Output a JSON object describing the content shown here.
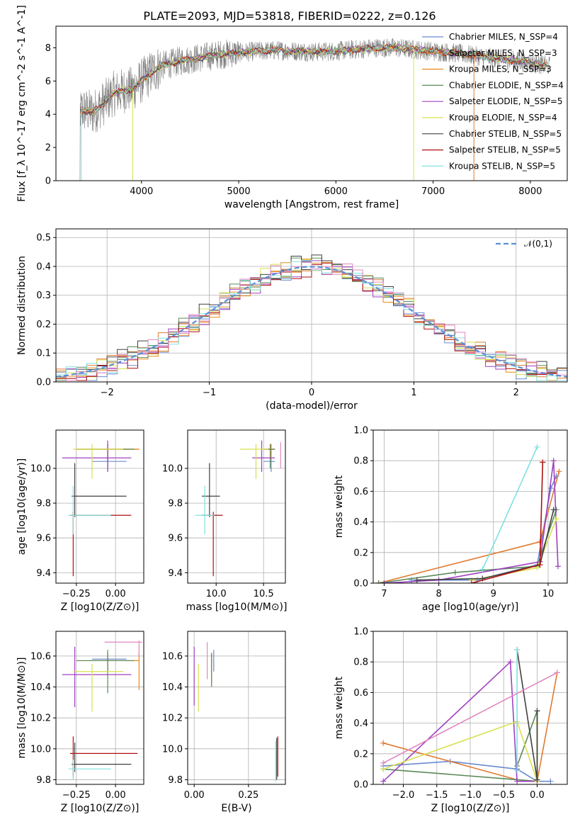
{
  "colors": [
    "#6a8bd1",
    "#e07a2f",
    "#e8891c",
    "#5a8a5a",
    "#a040c0",
    "#d8e050",
    "#404040",
    "#b01010",
    "#80e0e0",
    "#e088c0"
  ],
  "chart_data": [
    {
      "id": "spectrum",
      "type": "line",
      "title": "PLATE=2093, MJD=53818, FIBERID=0222, z=0.126",
      "xlabel": "wavelength [Angstrom, rest frame]",
      "ylabel": "Flux [f_λ 10^-17 erg cm^-2 s^-1 A^-1]",
      "xlim": [
        3120,
        8380
      ],
      "ylim": [
        0,
        9.3
      ],
      "xticks": [
        4000,
        5000,
        6000,
        7000,
        8000
      ],
      "yticks": [
        0,
        2,
        4,
        6,
        8
      ],
      "grid": false,
      "legend_position": "right",
      "series": [
        {
          "name": "Chabrier MILES, N_SSP=4",
          "color_index": 0
        },
        {
          "name": "Salpeter MILES, N_SSP=3",
          "color_index": 1
        },
        {
          "name": "Kroupa MILES, N_SSP=3",
          "color_index": 2
        },
        {
          "name": "Chabrier ELODIE, N_SSP=4",
          "color_index": 3
        },
        {
          "name": "Salpeter ELODIE, N_SSP=5",
          "color_index": 4
        },
        {
          "name": "Kroupa ELODIE, N_SSP=4",
          "color_index": 5
        },
        {
          "name": "Chabrier STELIB, N_SSP=5",
          "color_index": 6
        },
        {
          "name": "Salpeter STELIB, N_SSP=5",
          "color_index": 7
        },
        {
          "name": "Kroupa STELIB, N_SSP=5",
          "color_index": 8
        }
      ],
      "data_color": "#808080",
      "continuum": {
        "x": [
          3350,
          3400,
          3500,
          3600,
          3700,
          3800,
          3900,
          4000,
          4100,
          4200,
          4400,
          4600,
          4800,
          5000,
          5200,
          5400,
          5600,
          5800,
          6000,
          6200,
          6400,
          6600,
          6800,
          7000,
          7200,
          7400,
          7600,
          7800,
          8000,
          8200
        ],
        "y": [
          4.2,
          4.25,
          4.1,
          4.6,
          5.2,
          5.4,
          5.5,
          6.0,
          6.5,
          6.9,
          7.2,
          7.4,
          7.6,
          7.7,
          7.8,
          7.85,
          7.8,
          7.75,
          7.8,
          7.9,
          8.0,
          8.0,
          7.9,
          7.8,
          7.7,
          7.55,
          7.4,
          7.25,
          7.1,
          6.9
        ]
      }
    },
    {
      "id": "residuals",
      "type": "line",
      "xlabel": "(data-model)/error",
      "ylabel": "Normed distribution",
      "xlim": [
        -2.5,
        2.5
      ],
      "ylim": [
        0,
        0.53
      ],
      "xticks": [
        -2,
        -1,
        0,
        1,
        2
      ],
      "yticks": [
        0.0,
        0.1,
        0.2,
        0.3,
        0.4,
        0.5
      ],
      "grid": true,
      "legend_position": "top-right",
      "reference": {
        "name": "𝒩(0,1)",
        "color": "#5b8fd6",
        "mu": 0,
        "sigma": 1
      }
    },
    {
      "id": "age_vs_Z",
      "type": "scatter",
      "xlabel": "Z [log10(Z/Z⊙)]",
      "ylabel": "age [log10(age/yr)]",
      "xlim": [
        -0.38,
        0.18
      ],
      "ylim": [
        9.34,
        10.22
      ],
      "xticks": [
        -0.25,
        0.0
      ],
      "yticks": [
        9.4,
        9.6,
        9.8,
        10.0
      ],
      "grid": true,
      "points": [
        {
          "x": -0.05,
          "y": 10.04,
          "xe": [
            -0.15,
            0.07
          ],
          "ye": [
            9.98,
            10.1
          ],
          "c": 0
        },
        {
          "x": -0.05,
          "y": 10.11,
          "xe": [
            -0.25,
            0.15
          ],
          "ye": [
            10.05,
            10.14
          ],
          "c": 1
        },
        {
          "x": -0.05,
          "y": 10.11,
          "xe": [
            -0.25,
            0.15
          ],
          "ye": [
            10.05,
            10.14
          ],
          "c": 2
        },
        {
          "x": -0.05,
          "y": 10.11,
          "xe": [
            -0.25,
            0.12
          ],
          "ye": [
            10.0,
            10.14
          ],
          "c": 3
        },
        {
          "x": -0.05,
          "y": 10.06,
          "xe": [
            -0.34,
            0.1
          ],
          "ye": [
            9.98,
            10.16
          ],
          "c": 4
        },
        {
          "x": -0.15,
          "y": 10.11,
          "xe": [
            -0.27,
            0.05
          ],
          "ye": [
            9.94,
            10.14
          ],
          "c": 5
        },
        {
          "x": -0.26,
          "y": 9.84,
          "xe": [
            -0.28,
            0.07
          ],
          "ye": [
            9.72,
            10.03
          ],
          "c": 6
        },
        {
          "x": -0.27,
          "y": 9.73,
          "xe": [
            -0.29,
            0.1
          ],
          "ye": [
            9.38,
            9.75
          ],
          "c": 7
        },
        {
          "x": -0.27,
          "y": 9.73,
          "xe": [
            -0.3,
            -0.03
          ],
          "ye": [
            9.62,
            9.9
          ],
          "c": 8
        }
      ]
    },
    {
      "id": "age_vs_mass",
      "type": "scatter",
      "xlabel": "mass [log10(M/M⊙)]",
      "ylabel": "",
      "xlim": [
        9.7,
        10.73
      ],
      "ylim": [
        9.34,
        10.22
      ],
      "xticks": [
        10.0,
        10.5
      ],
      "yticks": [
        9.4,
        9.6,
        9.8,
        10.0
      ],
      "grid": true,
      "points": [
        {
          "x": 10.58,
          "y": 10.04,
          "xe": [
            10.5,
            10.62
          ],
          "ye": [
            9.98,
            10.1
          ],
          "c": 0
        },
        {
          "x": 10.58,
          "y": 10.11,
          "xe": [
            10.5,
            10.62
          ],
          "ye": [
            10.05,
            10.14
          ],
          "c": 1
        },
        {
          "x": 10.57,
          "y": 10.11,
          "xe": [
            10.5,
            10.62
          ],
          "ye": [
            10.05,
            10.14
          ],
          "c": 2
        },
        {
          "x": 10.57,
          "y": 10.11,
          "xe": [
            10.5,
            10.62
          ],
          "ye": [
            10.0,
            10.14
          ],
          "c": 3
        },
        {
          "x": 10.48,
          "y": 10.06,
          "xe": [
            10.38,
            10.62
          ],
          "ye": [
            9.98,
            10.16
          ],
          "c": 4
        },
        {
          "x": 10.42,
          "y": 10.11,
          "xe": [
            10.25,
            10.55
          ],
          "ye": [
            9.94,
            10.14
          ],
          "c": 5
        },
        {
          "x": 9.93,
          "y": 9.84,
          "xe": [
            9.85,
            10.04
          ],
          "ye": [
            9.72,
            10.03
          ],
          "c": 6
        },
        {
          "x": 9.97,
          "y": 9.73,
          "xe": [
            9.85,
            10.07
          ],
          "ye": [
            9.38,
            9.75
          ],
          "c": 7
        },
        {
          "x": 9.88,
          "y": 9.73,
          "xe": [
            9.78,
            9.98
          ],
          "ye": [
            9.62,
            9.9
          ],
          "c": 8
        },
        {
          "x": 10.68,
          "y": 10.11,
          "xe": [
            10.68,
            10.68
          ],
          "ye": [
            10.0,
            10.15
          ],
          "c": 9
        }
      ]
    },
    {
      "id": "massweight_vs_age",
      "type": "line",
      "xlabel": "age [log10(age/yr)]",
      "ylabel": "mass weight",
      "xlim": [
        6.8,
        10.35
      ],
      "ylim": [
        0,
        1.0
      ],
      "xticks": [
        7,
        8,
        9,
        10
      ],
      "yticks": [
        0.0,
        0.2,
        0.4,
        0.6,
        0.8,
        1.0
      ],
      "grid": true,
      "series": [
        {
          "c": 0,
          "x": [
            7.5,
            8.7,
            9.8,
            10.05,
            10.15
          ],
          "y": [
            0.02,
            0.02,
            0.12,
            0.62,
            0.7
          ]
        },
        {
          "c": 1,
          "x": [
            6.9,
            9.85,
            10.2
          ],
          "y": [
            0.0,
            0.27,
            0.73
          ]
        },
        {
          "c": 3,
          "x": [
            6.9,
            8.3,
            9.8,
            10.15
          ],
          "y": [
            0.0,
            0.07,
            0.11,
            0.48
          ]
        },
        {
          "c": 4,
          "x": [
            7.0,
            8.0,
            9.85,
            10.1,
            10.18
          ],
          "y": [
            0.0,
            0.02,
            0.14,
            0.8,
            0.11
          ]
        },
        {
          "c": 5,
          "x": [
            8.6,
            9.8,
            10.15
          ],
          "y": [
            0.02,
            0.1,
            0.42
          ]
        },
        {
          "c": 6,
          "x": [
            7.6,
            8.8,
            9.85,
            10.1
          ],
          "y": [
            0.02,
            0.03,
            0.12,
            0.48
          ]
        },
        {
          "c": 7,
          "x": [
            8.6,
            9.85,
            9.9
          ],
          "y": [
            0.0,
            0.12,
            0.79
          ]
        },
        {
          "c": 8,
          "x": [
            8.8,
            9.8
          ],
          "y": [
            0.09,
            0.89
          ]
        }
      ]
    },
    {
      "id": "mass_vs_Z",
      "type": "scatter",
      "xlabel": "Z [log10(Z/Z⊙)]",
      "ylabel": "mass [log10(M/M⊙)]",
      "xlim": [
        -0.38,
        0.18
      ],
      "ylim": [
        9.77,
        10.76
      ],
      "xticks": [
        -0.25,
        0.0
      ],
      "yticks": [
        9.8,
        10.0,
        10.2,
        10.4,
        10.6
      ],
      "grid": true,
      "points": [
        {
          "x": -0.05,
          "y": 10.58,
          "xe": [
            -0.15,
            0.07
          ],
          "ye": [
            10.5,
            10.62
          ],
          "c": 0
        },
        {
          "x": -0.05,
          "y": 10.57,
          "xe": [
            -0.25,
            0.15
          ],
          "ye": [
            10.5,
            10.62
          ],
          "c": 1
        },
        {
          "x": 0.15,
          "y": 10.57,
          "xe": [
            -0.1,
            0.15
          ],
          "ye": [
            10.38,
            10.62
          ],
          "c": 2
        },
        {
          "x": -0.05,
          "y": 10.57,
          "xe": [
            -0.25,
            0.12
          ],
          "ye": [
            10.36,
            10.64
          ],
          "c": 3
        },
        {
          "x": -0.26,
          "y": 10.48,
          "xe": [
            -0.34,
            0.1
          ],
          "ye": [
            10.27,
            10.66
          ],
          "c": 4
        },
        {
          "x": -0.15,
          "y": 10.5,
          "xe": [
            -0.27,
            0.05
          ],
          "ye": [
            10.24,
            10.55
          ],
          "c": 5
        },
        {
          "x": -0.26,
          "y": 9.9,
          "xe": [
            -0.28,
            0.1
          ],
          "ye": [
            9.85,
            10.04
          ],
          "c": 6
        },
        {
          "x": -0.27,
          "y": 9.97,
          "xe": [
            -0.29,
            0.14
          ],
          "ye": [
            9.82,
            10.08
          ],
          "c": 7
        },
        {
          "x": -0.27,
          "y": 9.87,
          "xe": [
            -0.3,
            -0.03
          ],
          "ye": [
            9.8,
            9.93
          ],
          "c": 8
        },
        {
          "x": 0.15,
          "y": 10.69,
          "xe": [
            -0.07,
            0.17
          ],
          "ye": [
            10.6,
            10.7
          ],
          "c": 9
        }
      ]
    },
    {
      "id": "mass_vs_ebv",
      "type": "scatter",
      "xlabel": "E(B-V)",
      "ylabel": "",
      "xlim": [
        -0.03,
        0.42
      ],
      "ylim": [
        9.77,
        10.76
      ],
      "xticks": [
        0.0,
        0.25
      ],
      "yticks": [
        9.8,
        10.0,
        10.2,
        10.4,
        10.6
      ],
      "grid": true,
      "points": [
        {
          "x": 0.09,
          "y": 10.58,
          "xe": [
            0.09,
            0.09
          ],
          "ye": [
            10.5,
            10.64
          ],
          "c": 0
        },
        {
          "x": 0.08,
          "y": 10.57,
          "xe": [
            0.08,
            0.08
          ],
          "ye": [
            10.42,
            10.62
          ],
          "c": 2
        },
        {
          "x": 0.08,
          "y": 10.55,
          "xe": [
            0.08,
            0.08
          ],
          "ye": [
            10.4,
            10.62
          ],
          "c": 3
        },
        {
          "x": 0.0,
          "y": 10.48,
          "xe": [
            0.0,
            0.0
          ],
          "ye": [
            10.28,
            10.66
          ],
          "c": 4
        },
        {
          "x": 0.02,
          "y": 10.45,
          "xe": [
            0.02,
            0.02
          ],
          "ye": [
            10.24,
            10.55
          ],
          "c": 5
        },
        {
          "x": 0.06,
          "y": 10.6,
          "xe": [
            0.06,
            0.06
          ],
          "ye": [
            10.45,
            10.69
          ],
          "c": 9
        },
        {
          "x": 0.38,
          "y": 9.97,
          "xe": [
            0.38,
            0.38
          ],
          "ye": [
            9.8,
            10.07
          ],
          "c": 6
        },
        {
          "x": 0.385,
          "y": 9.97,
          "xe": [
            0.385,
            0.385
          ],
          "ye": [
            9.82,
            10.08
          ],
          "c": 7
        },
        {
          "x": 0.375,
          "y": 9.9,
          "xe": [
            0.375,
            0.375
          ],
          "ye": [
            9.79,
            10.05
          ],
          "c": 8
        }
      ]
    },
    {
      "id": "massweight_vs_Z",
      "type": "line",
      "xlabel": "Z [log10(Z/Z⊙)]",
      "ylabel": "mass weight",
      "xlim": [
        -2.45,
        0.45
      ],
      "ylim": [
        0,
        1.0
      ],
      "xticks": [
        -2.0,
        -1.5,
        -1.0,
        -0.5,
        0.0
      ],
      "yticks": [
        0.0,
        0.2,
        0.4,
        0.6,
        0.8,
        1.0
      ],
      "grid": true,
      "series": [
        {
          "c": 0,
          "x": [
            -2.3,
            -1.3,
            -0.3,
            0.0,
            0.2
          ],
          "y": [
            0.12,
            0.15,
            0.1,
            0.02,
            0.02
          ]
        },
        {
          "c": 1,
          "x": [
            -2.3,
            -0.3,
            0.0,
            0.3
          ],
          "y": [
            0.27,
            0.03,
            0.02,
            0.73
          ]
        },
        {
          "c": 3,
          "x": [
            -2.3,
            0.0,
            0.0,
            -0.3
          ],
          "y": [
            0.1,
            0.02,
            0.48,
            0.12
          ]
        },
        {
          "c": 4,
          "x": [
            -2.3,
            -0.4,
            -0.3,
            0.0
          ],
          "y": [
            0.02,
            0.8,
            0.02,
            0.02
          ]
        },
        {
          "c": 5,
          "x": [
            -2.3,
            -0.3,
            0.0,
            0.0
          ],
          "y": [
            0.1,
            0.41,
            0.02,
            0.4
          ]
        },
        {
          "c": 6,
          "x": [
            -0.3,
            0.0,
            0.0
          ],
          "y": [
            0.88,
            0.03,
            0.48
          ]
        },
        {
          "c": 8,
          "x": [
            -0.3,
            -0.3
          ],
          "y": [
            0.88,
            0.09
          ]
        },
        {
          "c": 9,
          "x": [
            -2.3,
            0.3
          ],
          "y": [
            0.14,
            0.73
          ]
        }
      ]
    }
  ]
}
